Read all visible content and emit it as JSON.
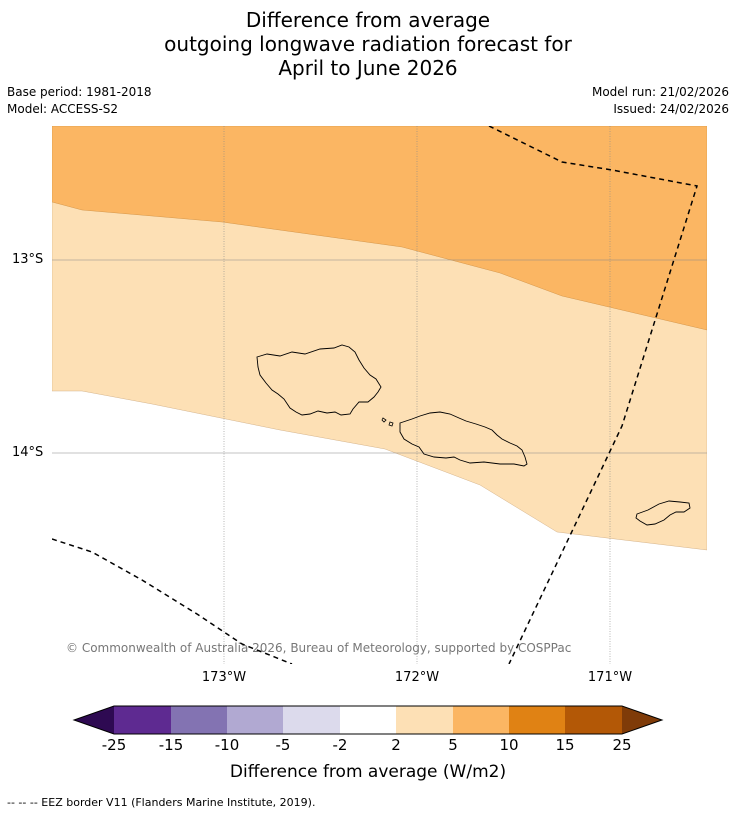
{
  "header": {
    "title_line1": "Difference from average",
    "title_line2": "outgoing longwave radiation forecast for",
    "title_line3": "April to June 2026",
    "base_period": "Base period: 1981-2018",
    "model": "Model: ACCESS-S2",
    "model_run": "Model run: 21/02/2026",
    "issued": "Issued: 24/02/2026"
  },
  "map": {
    "lat_labels": [
      "13°S",
      "14°S"
    ],
    "lon_labels": [
      "173°W",
      "172°W",
      "171°W"
    ],
    "copyright": "© Commonwealth of Australia 2026, Bureau of Meteorology, supported by COSPPac",
    "zones": [
      {
        "name": "5-10",
        "color": "#fbb663"
      },
      {
        "name": "2-5",
        "color": "#fde0b5"
      },
      {
        "name": "-2-2",
        "color": "#ffffff"
      }
    ]
  },
  "colorbar": {
    "colors": [
      "#2e0a52",
      "#5e2a91",
      "#8373b2",
      "#b1a9d2",
      "#dcdaec",
      "#ffffff",
      "#fde0b5",
      "#fbb663",
      "#e08214",
      "#b35806",
      "#7f3b08"
    ],
    "ticks": [
      "-25",
      "-15",
      "-10",
      "-5",
      "-2",
      "2",
      "5",
      "10",
      "15",
      "25"
    ],
    "label": "Difference from average (W/m2)"
  },
  "footnote": "--  --  -- EEZ border V11 (Flanders Marine Institute, 2019)."
}
